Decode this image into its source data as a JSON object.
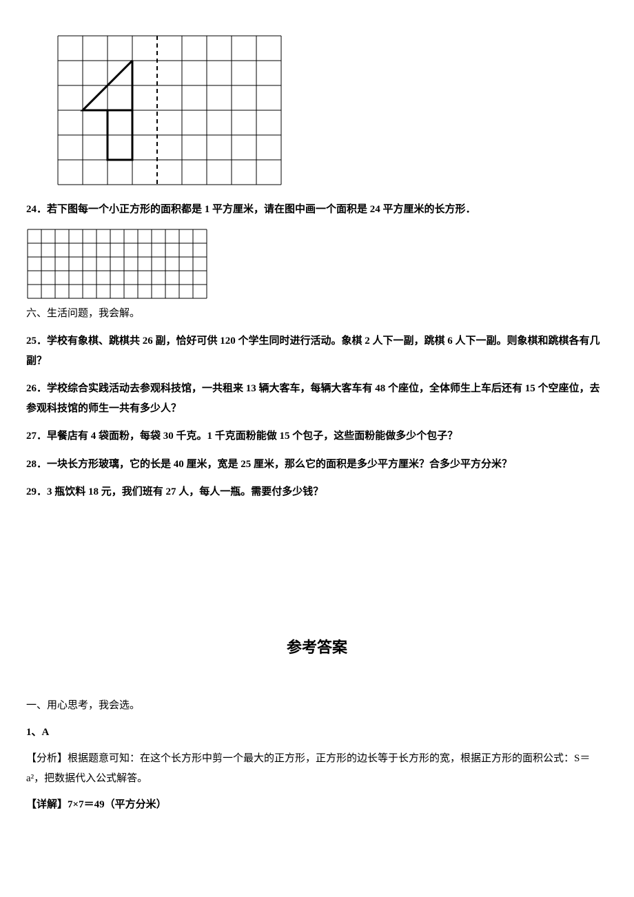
{
  "figure1": {
    "rows": 6,
    "cols": 9,
    "cell": 36,
    "stroke": "#000000",
    "thin_w": 1,
    "thick_w": 3,
    "dash_col": 4,
    "shape_points": [
      [
        3,
        1
      ],
      [
        1,
        3
      ],
      [
        3,
        3
      ],
      [
        3,
        5
      ],
      [
        2,
        5
      ],
      [
        2,
        3
      ]
    ],
    "triangle": [
      [
        3,
        1
      ],
      [
        1,
        3
      ],
      [
        3,
        3
      ]
    ],
    "stem": [
      [
        2,
        3
      ],
      [
        3,
        3
      ],
      [
        3,
        5
      ],
      [
        2,
        5
      ]
    ]
  },
  "q24": "24．若下图每一个小正方形的面积都是 1 平方厘米，请在图中画一个面积是 24 平方厘米的长方形．",
  "figure2": {
    "rows": 5,
    "cols": 13,
    "cell": 20,
    "stroke": "#000000",
    "thin_w": 1
  },
  "section6": "六、生活问题，我会解。",
  "q25": "25．学校有象棋、跳棋共 26 副，恰好可供 120 个学生同时进行活动。象棋 2 人下一副，跳棋 6 人下一副。则象棋和跳棋各有几副？",
  "q26": "26．学校综合实践活动去参观科技馆，一共租来 13 辆大客车，每辆大客车有 48 个座位，全体师生上车后还有 15 个空座位，去参观科技馆的师生一共有多少人？",
  "q27": "27．早餐店有 4 袋面粉，每袋 30 千克。1 千克面粉能做 15 个包子，这些面粉能做多少个包子？",
  "q28": "28．一块长方形玻璃，它的长是 40 厘米，宽是 25 厘米，那么它的面积是多少平方厘米？合多少平方分米？",
  "q29": "29．3 瓶饮料 18 元，我们班有 27 人，每人一瓶。需要付多少钱？",
  "answer_title": "参考答案",
  "ans_section1": "一、用心思考，我会选。",
  "a1_num": "1、A",
  "a1_analysis_label": "【分析】",
  "a1_analysis": "根据题意可知：在这个长方形中剪一个最大的正方形，正方形的边长等于长方形的宽，根据正方形的面积公式：S＝a²，把数据代入公式解答。",
  "a1_detail_label": "【详解】",
  "a1_detail": "7×7＝49（平方分米）"
}
